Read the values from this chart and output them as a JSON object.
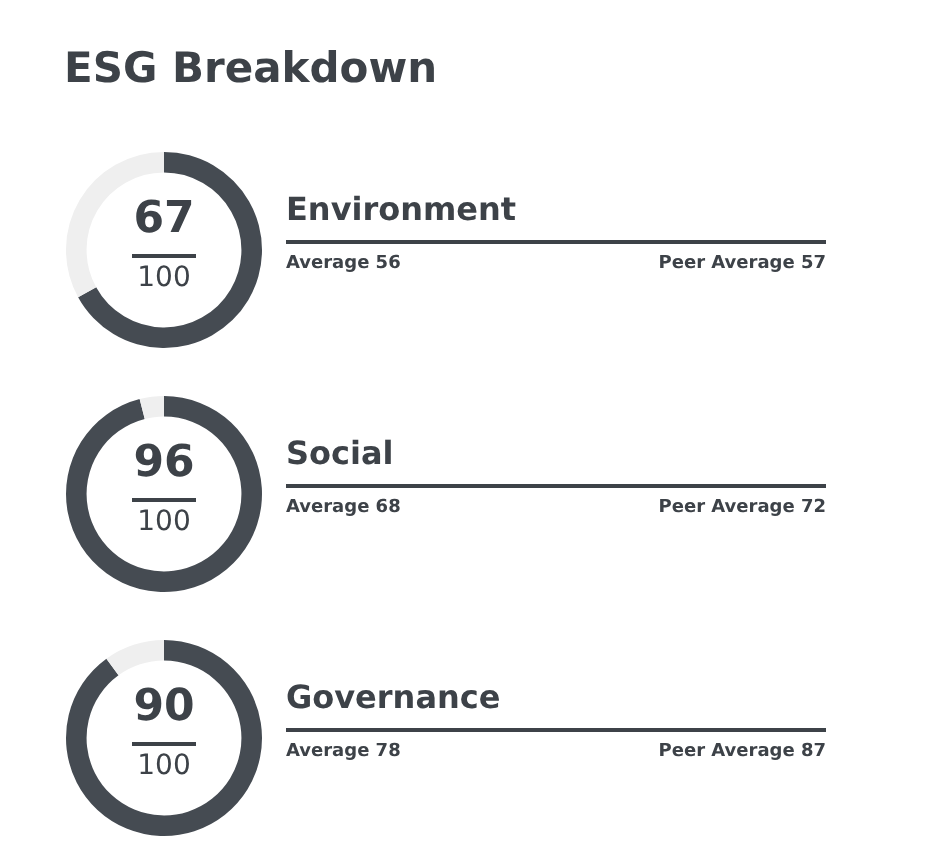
{
  "chart_data": [
    {
      "type": "other",
      "title": "ESG Breakdown"
    },
    {
      "type": "donut",
      "title": "Environment",
      "categories": [
        null,
        null
      ],
      "values": [
        67,
        33
      ],
      "colors": [
        "#454b52",
        "#efefef"
      ],
      "value_labels": [
        "67",
        null
      ],
      "annotations": [
        "100",
        "Average 56",
        "Peer Average 57"
      ],
      "legend": false
    },
    {
      "type": "donut",
      "title": "Social",
      "categories": [
        null,
        null
      ],
      "values": [
        96,
        4
      ],
      "colors": [
        "#454b52",
        "#efefef"
      ],
      "value_labels": [
        "96",
        null
      ],
      "annotations": [
        "100",
        "Average 68",
        "Peer Average 72"
      ],
      "legend": false
    },
    {
      "type": "donut",
      "title": "Governance",
      "categories": [
        null,
        null
      ],
      "values": [
        90,
        10
      ],
      "colors": [
        "#454b52",
        "#efefef"
      ],
      "value_labels": [
        "90",
        null
      ],
      "annotations": [
        "100",
        "Average 78",
        "Peer Average 87"
      ],
      "legend": false
    }
  ]
}
